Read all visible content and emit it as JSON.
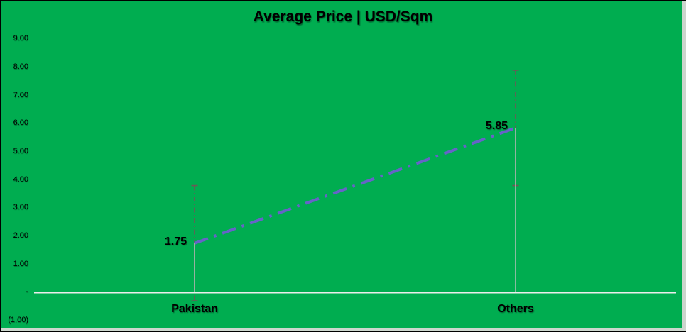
{
  "chart_data": {
    "type": "line",
    "title": "Average Price | USD/Sqm",
    "categories": [
      "Pakistan",
      "Others"
    ],
    "series": [
      {
        "name": "Average Price USD/Sqm",
        "values": [
          1.75,
          5.85
        ]
      }
    ],
    "data_labels": [
      "1.75",
      "5.85"
    ],
    "y_ticks": [
      {
        "label": "9.00",
        "value": 9
      },
      {
        "label": "8.00",
        "value": 8
      },
      {
        "label": "7.00",
        "value": 7
      },
      {
        "label": "6.00",
        "value": 6
      },
      {
        "label": "5.00",
        "value": 5
      },
      {
        "label": "4.00",
        "value": 4
      },
      {
        "label": "3.00",
        "value": 3
      },
      {
        "label": "2.00",
        "value": 2
      },
      {
        "label": "1.00",
        "value": 1
      },
      {
        "label": "-",
        "value": 0
      },
      {
        "label": "(1.00)",
        "value": -1
      }
    ],
    "ylim": [
      -1,
      9
    ],
    "gridlines": false,
    "legend": "none",
    "error_bar": {
      "plus": 2.05,
      "minus": 2.05
    },
    "line_style": "long-dash-dot",
    "colors": {
      "background": "#00AD50",
      "trendline": "#6663C8",
      "error_bar": "#6F5656",
      "axis_line": "#EDEDED",
      "drop_line": "#C2C2C2",
      "text": "#000000"
    }
  }
}
